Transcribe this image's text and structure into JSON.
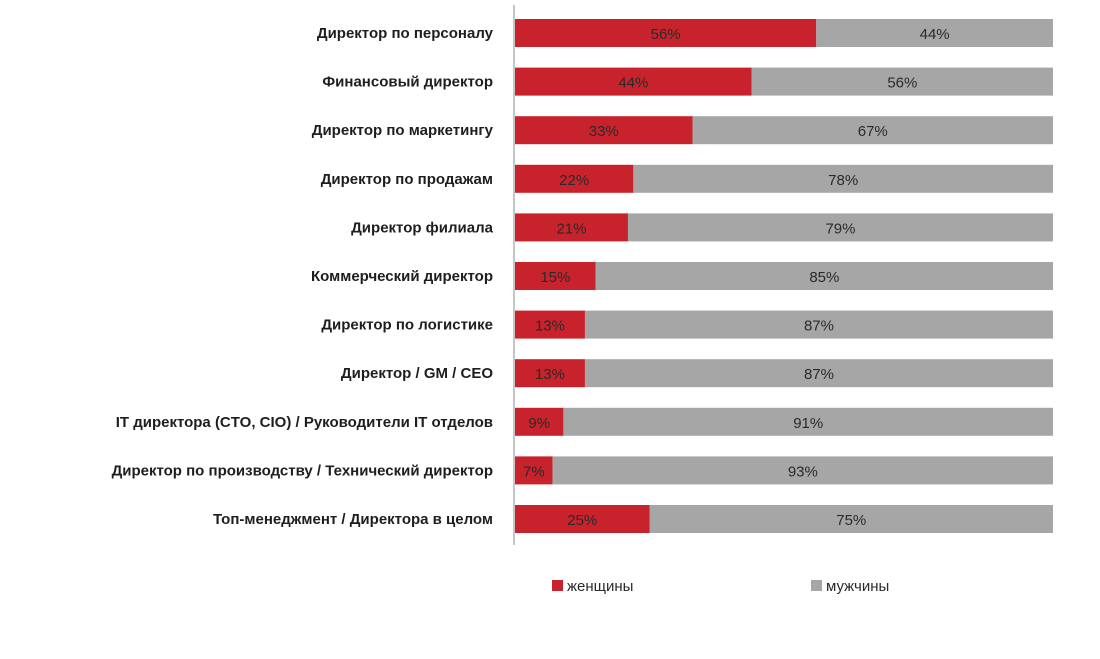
{
  "chart_data": {
    "type": "bar",
    "orientation": "horizontal",
    "stacked": true,
    "percent_stacked": true,
    "title": "",
    "xlabel": "",
    "ylabel": "",
    "xlim": [
      0,
      100
    ],
    "grid": false,
    "legend_position": "bottom",
    "categories": [
      "Директор по персоналу",
      "Финансовый  директор",
      "Директор по маркетингу",
      "Директор по продажам",
      "Директор филиала",
      "Коммерческий  директор",
      "Директор по логистике",
      "Директор / GM / CEO",
      "IT директора (CTO, CIO) / Руководители IT отделов",
      "Директор по производству / Технический  директор",
      "Топ-менеджмент / Директора в целом"
    ],
    "series": [
      {
        "name": "женщины",
        "color": "#c8232c",
        "values": [
          56,
          44,
          33,
          22,
          21,
          15,
          13,
          13,
          9,
          7,
          25
        ],
        "labels": [
          "56%",
          "44%",
          "33%",
          "22%",
          "21%",
          "15%",
          "13%",
          "13%",
          "9%",
          "7%",
          "25%"
        ]
      },
      {
        "name": "мужчины",
        "color": "#a6a6a6",
        "values": [
          44,
          56,
          67,
          78,
          79,
          85,
          87,
          87,
          91,
          93,
          75
        ],
        "labels": [
          "44%",
          "56%",
          "67%",
          "78%",
          "79%",
          "85%",
          "87%",
          "87%",
          "91%",
          "93%",
          "75%"
        ]
      }
    ]
  }
}
